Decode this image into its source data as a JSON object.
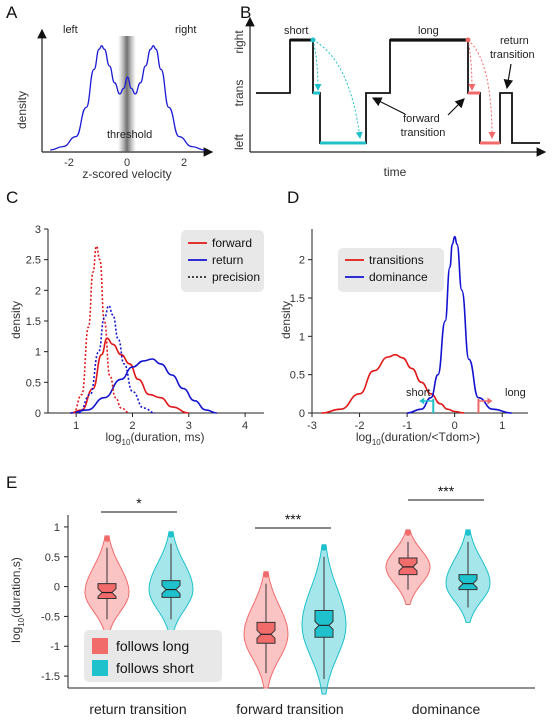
{
  "panels": {
    "A": {
      "letter": "A",
      "ylabel": "density",
      "xlabel": "z-scored velocity",
      "label_left": "left",
      "label_right": "right",
      "threshold_label": "threshold",
      "xticks": [
        "-2",
        "0",
        "2"
      ],
      "chart_data": {
        "type": "line",
        "xlim": [
          -3.2,
          3.2
        ],
        "x": [
          -3.0,
          -2.5,
          -2.0,
          -1.6,
          -1.3,
          -1.1,
          -1.0,
          -0.9,
          -0.7,
          -0.5,
          -0.3,
          -0.15,
          0.0,
          0.15,
          0.3,
          0.5,
          0.7,
          0.9,
          1.0,
          1.1,
          1.3,
          1.6,
          2.0,
          2.5,
          3.0
        ],
        "y": [
          0.0,
          0.03,
          0.12,
          0.38,
          0.72,
          0.9,
          0.93,
          0.9,
          0.75,
          0.6,
          0.5,
          0.55,
          0.65,
          0.55,
          0.5,
          0.6,
          0.75,
          0.9,
          0.93,
          0.9,
          0.72,
          0.38,
          0.12,
          0.03,
          0.0
        ],
        "color": "#1a1ad4"
      }
    },
    "B": {
      "letter": "B",
      "yticks": [
        "right",
        "trans",
        "left"
      ],
      "xlabel": "time",
      "label_short": "short",
      "label_long": "long",
      "label_return": "return transition",
      "label_forward": "forward transition",
      "colors": {
        "trace": "#000000",
        "short": "#20c0c8",
        "long": "#f06a6a"
      }
    },
    "C": {
      "letter": "C",
      "ylabel": "density",
      "xlabel": "log10(duration, ms)",
      "yticks": [
        "0",
        "0.5",
        "1",
        "1.5",
        "2",
        "2.5",
        "3"
      ],
      "xticks": [
        "1",
        "2",
        "3",
        "4"
      ],
      "legend": [
        "forward",
        "return",
        "precision"
      ],
      "chart_data": {
        "type": "line",
        "xlim": [
          0.5,
          4.3
        ],
        "ylim": [
          0,
          3
        ],
        "series": [
          {
            "name": "forward",
            "color": "#e01818",
            "style": "solid",
            "x": [
              0.9,
              1.1,
              1.3,
              1.45,
              1.55,
              1.65,
              1.8,
              1.95,
              2.1,
              2.3,
              2.5,
              2.7,
              3.0
            ],
            "y": [
              0.0,
              0.05,
              0.4,
              0.95,
              1.22,
              1.12,
              0.95,
              0.8,
              0.55,
              0.3,
              0.25,
              0.1,
              0.0
            ]
          },
          {
            "name": "return",
            "color": "#1414d0",
            "style": "solid",
            "x": [
              0.9,
              1.2,
              1.5,
              1.8,
              2.0,
              2.2,
              2.35,
              2.5,
              2.7,
              2.9,
              3.1,
              3.3,
              3.5
            ],
            "y": [
              0.0,
              0.05,
              0.25,
              0.55,
              0.75,
              0.85,
              0.88,
              0.8,
              0.62,
              0.4,
              0.2,
              0.05,
              0.0
            ]
          },
          {
            "name": "forward precision",
            "color": "#e01818",
            "style": "dotted",
            "x": [
              0.95,
              1.1,
              1.22,
              1.3,
              1.36,
              1.42,
              1.5,
              1.6,
              1.7,
              1.8,
              1.95
            ],
            "y": [
              0.0,
              0.3,
              1.4,
              2.3,
              2.72,
              2.5,
              1.5,
              0.6,
              0.25,
              0.08,
              0.0
            ]
          },
          {
            "name": "return precision",
            "color": "#1414d0",
            "style": "dotted",
            "x": [
              1.05,
              1.25,
              1.4,
              1.5,
              1.58,
              1.65,
              1.75,
              1.85,
              2.0,
              2.2,
              2.4
            ],
            "y": [
              0.0,
              0.3,
              1.0,
              1.55,
              1.75,
              1.6,
              1.2,
              0.8,
              0.35,
              0.08,
              0.0
            ]
          }
        ]
      }
    },
    "D": {
      "letter": "D",
      "ylabel": "density",
      "xlabel": "log10(duration/<Tdom>)",
      "yticks": [
        "0",
        "0.5",
        "1",
        "1.5",
        "2"
      ],
      "xticks": [
        "-3",
        "-2",
        "-1",
        "0",
        "1"
      ],
      "legend": [
        "transitions",
        "dominance"
      ],
      "label_short": "short",
      "label_long": "long",
      "chart_data": {
        "type": "line",
        "xlim": [
          -3.0,
          1.5
        ],
        "ylim": [
          0,
          2.4
        ],
        "series": [
          {
            "name": "transitions",
            "color": "#e01818",
            "x": [
              -2.8,
              -2.4,
              -2.0,
              -1.7,
              -1.4,
              -1.25,
              -1.1,
              -0.9,
              -0.7,
              -0.5,
              -0.3,
              -0.15,
              0.0,
              0.2
            ],
            "y": [
              0.0,
              0.05,
              0.25,
              0.55,
              0.73,
              0.76,
              0.72,
              0.58,
              0.4,
              0.25,
              0.12,
              0.05,
              0.02,
              0.0
            ]
          },
          {
            "name": "dominance",
            "color": "#1414d0",
            "x": [
              -1.0,
              -0.7,
              -0.5,
              -0.35,
              -0.2,
              -0.1,
              -0.05,
              0.0,
              0.05,
              0.15,
              0.3,
              0.5,
              0.8,
              1.2
            ],
            "y": [
              0.0,
              0.05,
              0.2,
              0.5,
              1.2,
              1.9,
              2.2,
              2.3,
              2.2,
              1.6,
              0.7,
              0.2,
              0.05,
              0.0
            ]
          }
        ],
        "thresholds": [
          {
            "name": "short",
            "x": -0.45,
            "color": "#20c0c8"
          },
          {
            "name": "long",
            "x": 0.5,
            "color": "#f06a6a"
          }
        ]
      }
    },
    "E": {
      "letter": "E",
      "ylabel": "log10(duration,s)",
      "yticks": [
        "1",
        "0.5",
        "0",
        "-0.5",
        "-1",
        "-1.5"
      ],
      "legend": [
        "follows long",
        "follows short"
      ],
      "significance": [
        "*",
        "***",
        "***"
      ],
      "chart_data": {
        "type": "violin",
        "ylim": [
          -1.7,
          1.2
        ],
        "categories": [
          "return transition",
          "forward transition",
          "dominance"
        ],
        "series": [
          {
            "name": "follows long",
            "color": "#f26b6b",
            "median": [
              -0.1,
              -0.8,
              0.33
            ],
            "q1": [
              -0.2,
              -0.95,
              0.2
            ],
            "q3": [
              0.05,
              -0.6,
              0.48
            ],
            "whisker_low": [
              -0.55,
              -1.45,
              -0.05
            ],
            "whisker_high": [
              0.65,
              0.05,
              0.75
            ]
          },
          {
            "name": "follows short",
            "color": "#1fc1cc",
            "median": [
              -0.05,
              -0.65,
              0.05
            ],
            "q1": [
              -0.18,
              -0.85,
              -0.05
            ],
            "q3": [
              0.1,
              -0.4,
              0.2
            ],
            "whisker_low": [
              -0.55,
              -1.55,
              -0.35
            ],
            "whisker_high": [
              0.72,
              0.5,
              0.75
            ]
          }
        ]
      }
    }
  }
}
